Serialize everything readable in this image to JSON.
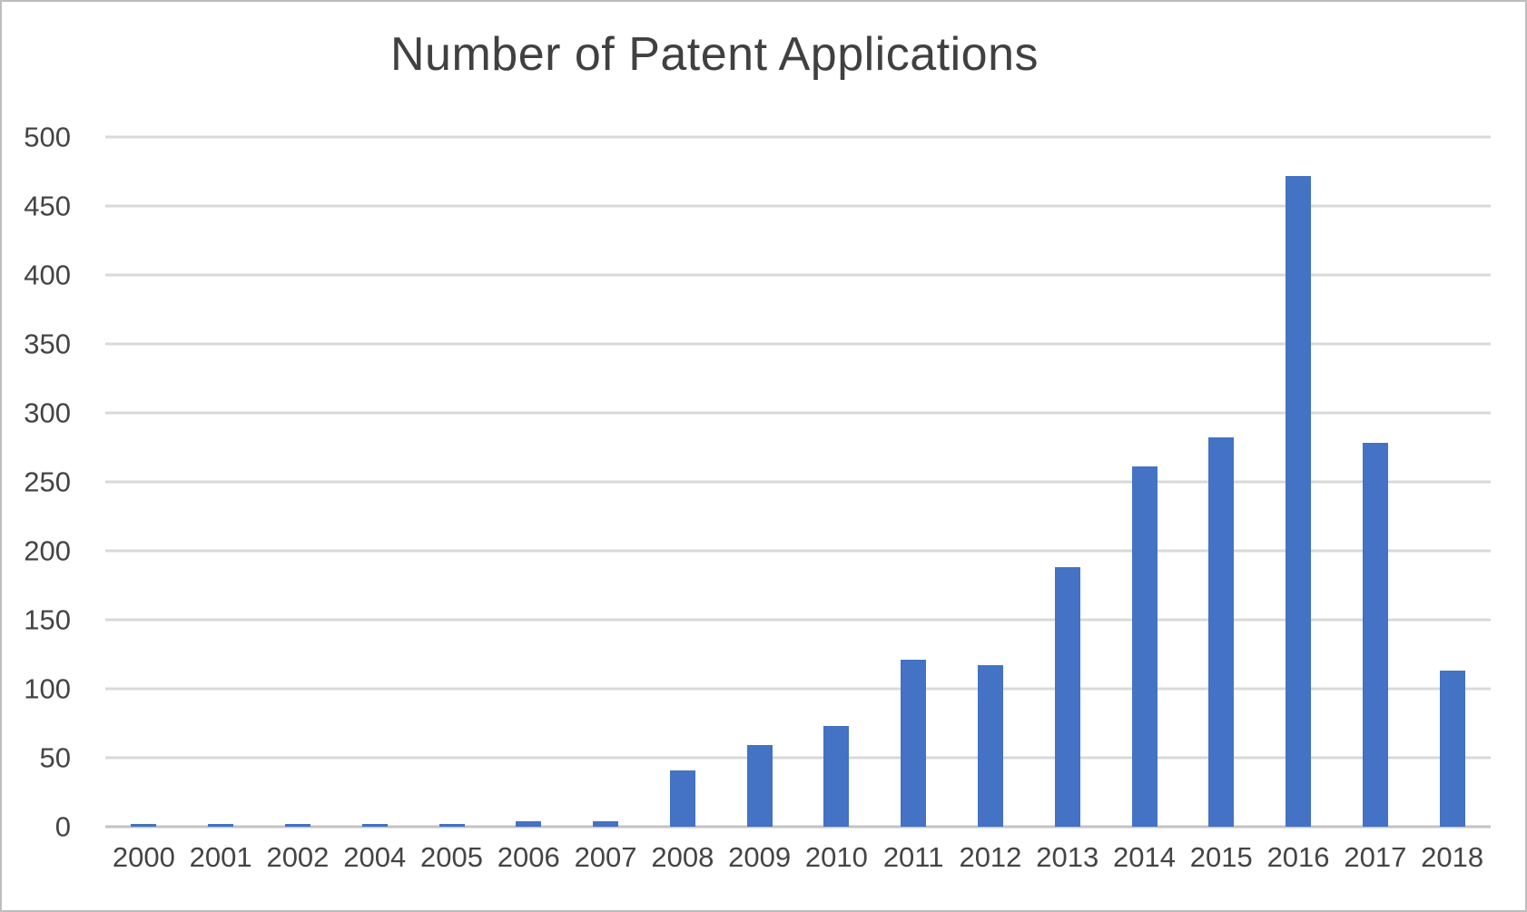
{
  "chart_data": {
    "type": "bar",
    "title": "Number of Patent Applications",
    "categories": [
      "2000",
      "2001",
      "2002",
      "2004",
      "2005",
      "2006",
      "2007",
      "2008",
      "2009",
      "2010",
      "2011",
      "2012",
      "2013",
      "2014",
      "2015",
      "2016",
      "2017",
      "2018"
    ],
    "values": [
      2,
      2,
      2,
      2,
      2,
      4,
      4,
      41,
      59,
      73,
      121,
      117,
      188,
      261,
      282,
      472,
      278,
      113
    ],
    "xlabel": "",
    "ylabel": "",
    "ylim": [
      0,
      500
    ],
    "yticks": [
      0,
      50,
      100,
      150,
      200,
      250,
      300,
      350,
      400,
      450,
      500
    ],
    "grid": true,
    "legend": false,
    "bar_color": "#4472C4",
    "gridline_color": "#D9D9D9",
    "axis_line_color": "#C3C3C3",
    "text_color": "#444444",
    "title_color": "#404040",
    "background": "#FFFFFF"
  }
}
